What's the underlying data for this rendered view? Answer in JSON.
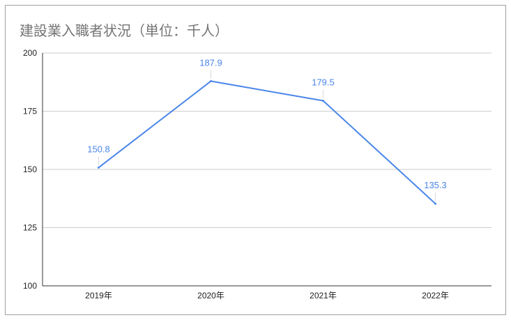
{
  "chart_data": {
    "type": "line",
    "title": "建設業入職者状況（単位：千人）",
    "categories": [
      "2019年",
      "2020年",
      "2021年",
      "2022年"
    ],
    "series": [
      {
        "values": [
          150.8,
          187.9,
          179.5,
          135.3
        ]
      }
    ],
    "data_labels": [
      "150.8",
      "187.9",
      "179.5",
      "135.3"
    ],
    "ylim": [
      100,
      200
    ],
    "yticks": [
      100,
      125,
      150,
      175,
      200
    ],
    "grid": true,
    "legend": "none",
    "colors": {
      "line": "#4a86e8",
      "grid": "#cccccc",
      "axis": "#333333",
      "title": "#757575"
    }
  }
}
